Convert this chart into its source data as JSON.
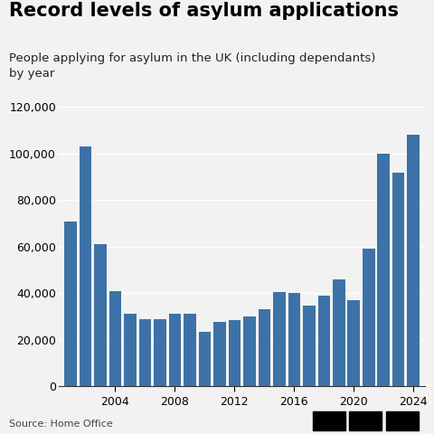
{
  "title": "Record levels of asylum applications",
  "subtitle": "People applying for asylum in the UK (including dependants)\nby year",
  "source": "Source: Home Office",
  "bar_color": "#3d72a8",
  "background_color": "#f2f2f2",
  "years": [
    2001,
    2002,
    2003,
    2004,
    2005,
    2006,
    2007,
    2008,
    2009,
    2010,
    2011,
    2012,
    2013,
    2014,
    2015,
    2016,
    2017,
    2018,
    2019,
    2020,
    2021,
    2022,
    2023,
    2024
  ],
  "values": [
    71000,
    103000,
    61000,
    41000,
    31000,
    29000,
    29000,
    31000,
    31000,
    23500,
    27500,
    28500,
    30000,
    33000,
    40500,
    40000,
    34500,
    39000,
    46000,
    37000,
    59000,
    100000,
    92000,
    108000
  ],
  "x_tick_labels": [
    "2004",
    "2008",
    "2012",
    "2016",
    "2020",
    "2024"
  ],
  "x_tick_positions": [
    2004,
    2008,
    2012,
    2016,
    2020,
    2024
  ],
  "ylim": [
    0,
    125000
  ],
  "yticks": [
    0,
    20000,
    40000,
    60000,
    80000,
    100000,
    120000
  ],
  "title_fontsize": 15,
  "subtitle_fontsize": 9.5,
  "tick_fontsize": 9
}
